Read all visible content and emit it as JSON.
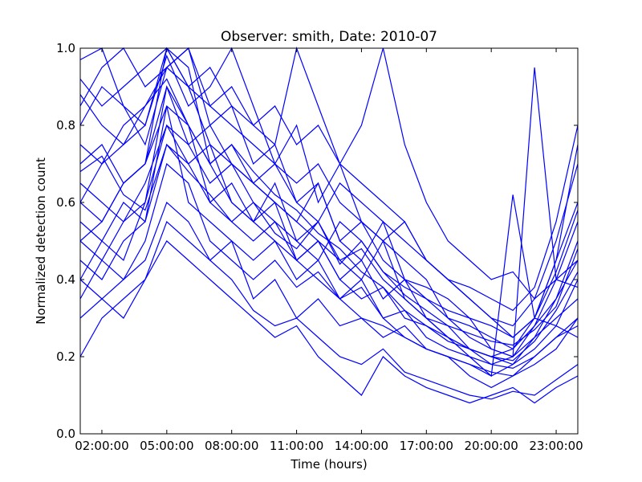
{
  "chart_data": {
    "type": "line",
    "title": "Observer: smith, Date: 2010-07",
    "xlabel": "Time (hours)",
    "ylabel": "Normalized detection count",
    "x_unit": "hour of day",
    "x_tick_values": [
      2,
      5,
      8,
      11,
      14,
      17,
      20,
      23
    ],
    "x_tick_labels": [
      "02:00:00",
      "05:00:00",
      "08:00:00",
      "11:00:00",
      "14:00:00",
      "17:00:00",
      "20:00:00",
      "23:00:00"
    ],
    "xlim": [
      1,
      24
    ],
    "ylim": [
      0,
      1
    ],
    "y_tick_values": [
      0,
      0.2,
      0.4,
      0.6,
      0.8,
      1.0
    ],
    "y_tick_labels": [
      "0.0",
      "0.2",
      "0.4",
      "0.6",
      "0.8",
      "1.0"
    ],
    "grid": false,
    "line_color": "#0000ff",
    "x": [
      1,
      2,
      3,
      4,
      5,
      6,
      7,
      8,
      9,
      10,
      11,
      12,
      13,
      14,
      15,
      16,
      17,
      18,
      19,
      20,
      21,
      22,
      23,
      24
    ],
    "series": [
      {
        "values": [
          0.97,
          1.0,
          0.85,
          0.8,
          1.0,
          0.9,
          0.75,
          0.7,
          0.65,
          0.6,
          0.55,
          0.5,
          0.45,
          0.48,
          0.4,
          0.35,
          0.3,
          0.25,
          0.22,
          0.2,
          0.18,
          0.25,
          0.3,
          0.35
        ]
      },
      {
        "values": [
          0.85,
          0.95,
          1.0,
          0.9,
          0.95,
          1.0,
          0.8,
          0.85,
          0.7,
          0.75,
          0.6,
          0.65,
          0.5,
          0.55,
          0.45,
          0.4,
          0.35,
          0.3,
          0.25,
          0.22,
          0.2,
          0.28,
          0.4,
          0.55
        ]
      },
      {
        "values": [
          0.6,
          0.7,
          0.75,
          0.8,
          0.98,
          0.85,
          0.9,
          1.0,
          0.85,
          0.7,
          0.8,
          0.6,
          0.7,
          0.55,
          0.5,
          0.45,
          0.4,
          0.3,
          0.28,
          0.25,
          0.22,
          0.3,
          0.45,
          0.6
        ]
      },
      {
        "values": [
          0.5,
          0.55,
          0.65,
          0.7,
          1.0,
          0.95,
          0.7,
          0.6,
          0.55,
          0.65,
          0.5,
          0.55,
          0.45,
          0.4,
          0.5,
          0.35,
          0.3,
          0.28,
          0.22,
          0.18,
          0.2,
          0.25,
          0.35,
          0.5
        ]
      },
      {
        "values": [
          0.4,
          0.5,
          0.45,
          0.6,
          0.9,
          0.8,
          0.6,
          0.55,
          0.5,
          0.55,
          0.45,
          0.5,
          0.4,
          0.45,
          0.35,
          0.4,
          0.3,
          0.25,
          0.2,
          0.15,
          0.18,
          0.22,
          0.28,
          0.4
        ]
      },
      {
        "values": [
          0.35,
          0.45,
          0.4,
          0.5,
          0.7,
          0.65,
          0.5,
          0.45,
          0.4,
          0.45,
          0.38,
          0.42,
          0.35,
          0.4,
          0.3,
          0.32,
          0.25,
          0.22,
          0.2,
          0.18,
          0.17,
          0.2,
          0.25,
          0.3
        ]
      },
      {
        "values": [
          0.3,
          0.35,
          0.4,
          0.45,
          0.6,
          0.55,
          0.45,
          0.5,
          0.35,
          0.4,
          0.3,
          0.35,
          0.28,
          0.3,
          0.25,
          0.28,
          0.22,
          0.2,
          0.15,
          0.12,
          0.15,
          0.2,
          0.25,
          0.28
        ]
      },
      {
        "values": [
          0.75,
          0.7,
          0.8,
          0.85,
          0.95,
          0.9,
          0.85,
          0.8,
          0.75,
          0.7,
          0.65,
          0.7,
          0.6,
          0.55,
          0.5,
          0.55,
          0.45,
          0.4,
          0.35,
          0.3,
          0.28,
          0.35,
          0.5,
          0.7
        ]
      },
      {
        "values": [
          0.65,
          0.6,
          0.55,
          0.6,
          0.8,
          0.75,
          0.65,
          0.7,
          0.6,
          0.55,
          0.5,
          0.45,
          0.55,
          0.5,
          0.42,
          0.38,
          0.35,
          0.32,
          0.3,
          0.28,
          0.25,
          0.3,
          0.42,
          0.58
        ]
      },
      {
        "values": [
          0.55,
          0.5,
          0.6,
          0.55,
          0.75,
          0.7,
          0.6,
          0.65,
          0.55,
          0.6,
          0.45,
          0.5,
          0.4,
          0.35,
          0.38,
          0.3,
          0.28,
          0.25,
          0.22,
          0.2,
          0.22,
          0.28,
          0.35,
          0.45
        ]
      },
      {
        "values": [
          0.92,
          0.85,
          0.9,
          0.95,
          1.0,
          0.9,
          0.95,
          0.85,
          0.8,
          0.85,
          0.75,
          0.8,
          0.7,
          0.65,
          0.6,
          0.55,
          0.45,
          0.4,
          0.35,
          0.3,
          0.25,
          0.3,
          0.45,
          0.75
        ]
      },
      {
        "values": [
          0.45,
          0.4,
          0.5,
          0.55,
          0.85,
          0.6,
          0.55,
          0.5,
          0.45,
          0.5,
          0.4,
          0.45,
          0.35,
          0.38,
          0.3,
          0.25,
          0.22,
          0.2,
          0.18,
          0.16,
          0.15,
          0.18,
          0.22,
          0.3
        ]
      },
      {
        "values": [
          0.7,
          0.75,
          0.65,
          0.7,
          0.85,
          0.8,
          0.7,
          0.75,
          0.65,
          0.7,
          0.6,
          0.55,
          0.65,
          0.6,
          0.55,
          0.5,
          0.45,
          0.4,
          0.38,
          0.35,
          0.32,
          0.38,
          0.55,
          0.8
        ]
      },
      {
        "values": [
          0.2,
          0.3,
          0.35,
          0.4,
          0.5,
          0.45,
          0.4,
          0.35,
          0.3,
          0.25,
          0.28,
          0.2,
          0.15,
          0.1,
          0.2,
          0.15,
          0.12,
          0.1,
          0.08,
          0.1,
          0.12,
          0.08,
          0.12,
          0.15
        ]
      },
      {
        "values": [
          0.8,
          0.9,
          0.85,
          0.75,
          0.95,
          1.0,
          0.85,
          0.9,
          0.8,
          0.75,
          1.0,
          0.85,
          0.7,
          0.8,
          1.0,
          0.75,
          0.6,
          0.5,
          0.45,
          0.4,
          0.42,
          0.35,
          0.4,
          0.45
        ]
      },
      {
        "values": [
          0.6,
          0.55,
          0.65,
          0.7,
          0.9,
          0.75,
          0.8,
          0.7,
          0.65,
          0.6,
          0.55,
          0.65,
          0.5,
          0.45,
          0.55,
          0.4,
          0.38,
          0.35,
          0.3,
          0.22,
          0.2,
          0.95,
          0.4,
          0.38
        ]
      },
      {
        "values": [
          0.5,
          0.45,
          0.55,
          0.65,
          0.8,
          0.7,
          0.75,
          0.6,
          0.55,
          0.5,
          0.45,
          0.4,
          0.35,
          0.3,
          0.28,
          0.25,
          0.22,
          0.2,
          0.18,
          0.15,
          0.62,
          0.3,
          0.28,
          0.25
        ]
      },
      {
        "values": [
          0.88,
          0.8,
          0.75,
          0.85,
          0.92,
          0.8,
          0.7,
          0.75,
          0.68,
          0.62,
          0.58,
          0.52,
          0.48,
          0.42,
          0.38,
          0.32,
          0.28,
          0.24,
          0.22,
          0.2,
          0.19,
          0.24,
          0.32,
          0.42
        ]
      },
      {
        "values": [
          0.4,
          0.35,
          0.3,
          0.4,
          0.55,
          0.5,
          0.45,
          0.4,
          0.32,
          0.28,
          0.3,
          0.25,
          0.2,
          0.18,
          0.22,
          0.16,
          0.14,
          0.12,
          0.1,
          0.09,
          0.11,
          0.1,
          0.14,
          0.18
        ]
      },
      {
        "values": [
          0.68,
          0.72,
          0.62,
          0.58,
          0.75,
          0.68,
          0.62,
          0.55,
          0.6,
          0.52,
          0.48,
          0.55,
          0.44,
          0.5,
          0.42,
          0.36,
          0.32,
          0.28,
          0.26,
          0.24,
          0.23,
          0.27,
          0.33,
          0.48
        ]
      }
    ]
  }
}
